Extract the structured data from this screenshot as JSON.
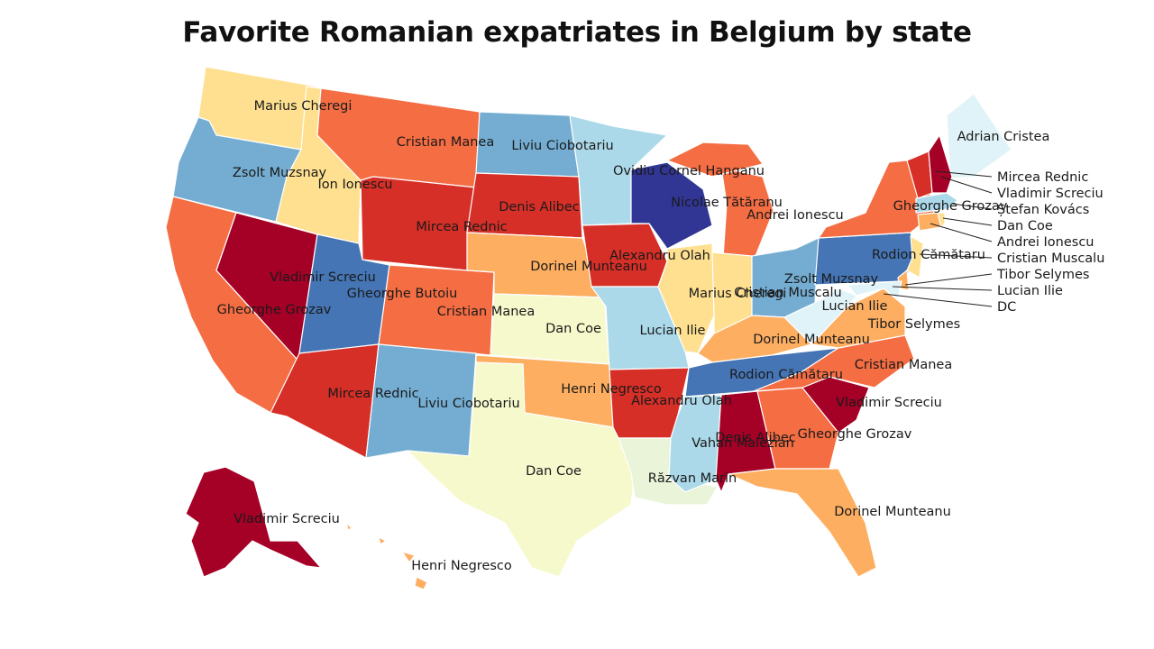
{
  "title": "Favorite Romanian expatriates in Belgium by state",
  "colors": {
    "dark_red": "#a50026",
    "red": "#d62f27",
    "orange_red": "#f46d43",
    "orange": "#fdae61",
    "light_orange": "#fee090",
    "pale_yellow": "#f6f9cc",
    "pale_green": "#e9f4d9",
    "pale_cyan": "#e0f3f8",
    "light_blue": "#abd9e9",
    "blue": "#74add1",
    "mid_blue": "#4575b4",
    "dark_blue": "#313695"
  },
  "states": [
    {
      "id": "WA",
      "name": "Marius Cheregi"
    },
    {
      "id": "OR",
      "name": "Zsolt Muzsnay"
    },
    {
      "id": "CA",
      "name": "Gheorghe Grozav"
    },
    {
      "id": "NV",
      "name": "Vladimir Screciu"
    },
    {
      "id": "ID",
      "name": "Ion Ionescu"
    },
    {
      "id": "MT",
      "name": "Cristian Manea"
    },
    {
      "id": "WY",
      "name": "Mircea Rednic"
    },
    {
      "id": "UT",
      "name": "Gheorghe Butoiu"
    },
    {
      "id": "AZ",
      "name": "Mircea Rednic"
    },
    {
      "id": "CO",
      "name": "Cristian Manea"
    },
    {
      "id": "NM",
      "name": "Liviu Ciobotariu"
    },
    {
      "id": "ND",
      "name": "Liviu Ciobotariu"
    },
    {
      "id": "SD",
      "name": "Denis Alibec"
    },
    {
      "id": "NE",
      "name": "Dorinel Munteanu"
    },
    {
      "id": "KS",
      "name": "Dan Coe"
    },
    {
      "id": "OK",
      "name": "Henri Negresco"
    },
    {
      "id": "TX",
      "name": "Dan Coe"
    },
    {
      "id": "MN",
      "name": "Ovidiu Cornel Hanganu"
    },
    {
      "id": "IA",
      "name": "Alexandru Olah"
    },
    {
      "id": "MO",
      "name": "Lucian Ilie"
    },
    {
      "id": "AR",
      "name": "Alexandru Olah"
    },
    {
      "id": "LA",
      "name": "Răzvan Marin"
    },
    {
      "id": "WI",
      "name": "Nicolae Tătăranu"
    },
    {
      "id": "IL",
      "name": "Marius Cheregi"
    },
    {
      "id": "MI",
      "name": "Andrei Ionescu"
    },
    {
      "id": "IN",
      "name": "Cristian Muscalu"
    },
    {
      "id": "OH",
      "name": "Zsolt Muzsnay"
    },
    {
      "id": "KY",
      "name": "Dorinel Munteanu"
    },
    {
      "id": "TN",
      "name": "Rodion Cămătaru"
    },
    {
      "id": "MS",
      "name": "Vahan Malezian"
    },
    {
      "id": "AL",
      "name": "Denis Alibec"
    },
    {
      "id": "GA",
      "name": "Gheorghe Grozav"
    },
    {
      "id": "FL",
      "name": "Dorinel Munteanu"
    },
    {
      "id": "SC",
      "name": "Vladimir Screciu"
    },
    {
      "id": "NC",
      "name": "Cristian Manea"
    },
    {
      "id": "VA",
      "name": "Tibor Selymes"
    },
    {
      "id": "WV",
      "name": "Lucian Ilie"
    },
    {
      "id": "PA",
      "name": "Rodion Cămătaru"
    },
    {
      "id": "NY",
      "name": "Gheorghe Grozav"
    },
    {
      "id": "ME",
      "name": "Adrian Cristea"
    },
    {
      "id": "VT",
      "name": "Mircea Rednic"
    },
    {
      "id": "NH",
      "name": "Vladimir Screciu"
    },
    {
      "id": "MA",
      "name": "Ștefan Kovács"
    },
    {
      "id": "RI",
      "name": "Dan Coe"
    },
    {
      "id": "CT",
      "name": "Andrei Ionescu"
    },
    {
      "id": "NJ",
      "name": "Cristian Muscalu"
    },
    {
      "id": "DE",
      "name": "Tibor Selymes"
    },
    {
      "id": "MD",
      "name": "Lucian Ilie"
    },
    {
      "id": "DC",
      "name": "DC"
    },
    {
      "id": "AK",
      "name": "Vladimir Screciu"
    },
    {
      "id": "HI",
      "name": "Henri Negresco"
    }
  ]
}
